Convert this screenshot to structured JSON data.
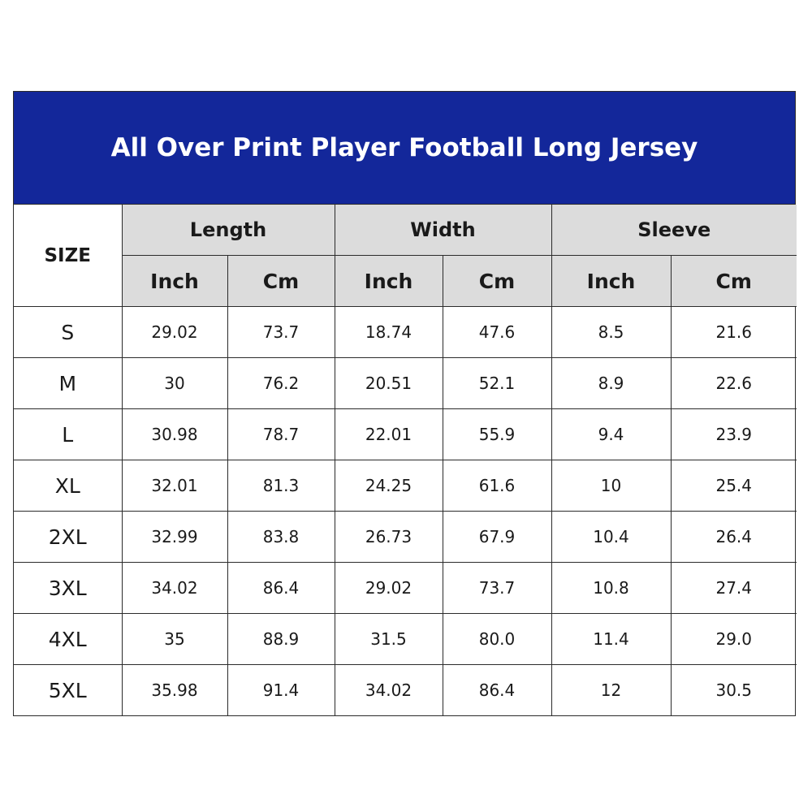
{
  "title": "All Over Print Player Football Long Jersey",
  "colors": {
    "title_bg": "#13279a",
    "header_bg": "#dcdcdc",
    "border": "#2b2b2b"
  },
  "table": {
    "size_header": "SIZE",
    "groups": [
      "Length",
      "Width",
      "Sleeve"
    ],
    "units": [
      "Inch",
      "Cm",
      "Inch",
      "Cm",
      "Inch",
      "Cm"
    ],
    "rows": [
      {
        "size": "S",
        "values": [
          "29.02",
          "73.7",
          "18.74",
          "47.6",
          "8.5",
          "21.6"
        ]
      },
      {
        "size": "M",
        "values": [
          "30",
          "76.2",
          "20.51",
          "52.1",
          "8.9",
          "22.6"
        ]
      },
      {
        "size": "L",
        "values": [
          "30.98",
          "78.7",
          "22.01",
          "55.9",
          "9.4",
          "23.9"
        ]
      },
      {
        "size": "XL",
        "values": [
          "32.01",
          "81.3",
          "24.25",
          "61.6",
          "10",
          "25.4"
        ]
      },
      {
        "size": "2XL",
        "values": [
          "32.99",
          "83.8",
          "26.73",
          "67.9",
          "10.4",
          "26.4"
        ]
      },
      {
        "size": "3XL",
        "values": [
          "34.02",
          "86.4",
          "29.02",
          "73.7",
          "10.8",
          "27.4"
        ]
      },
      {
        "size": "4XL",
        "values": [
          "35",
          "88.9",
          "31.5",
          "80.0",
          "11.4",
          "29.0"
        ]
      },
      {
        "size": "5XL",
        "values": [
          "35.98",
          "91.4",
          "34.02",
          "86.4",
          "12",
          "30.5"
        ]
      }
    ]
  }
}
